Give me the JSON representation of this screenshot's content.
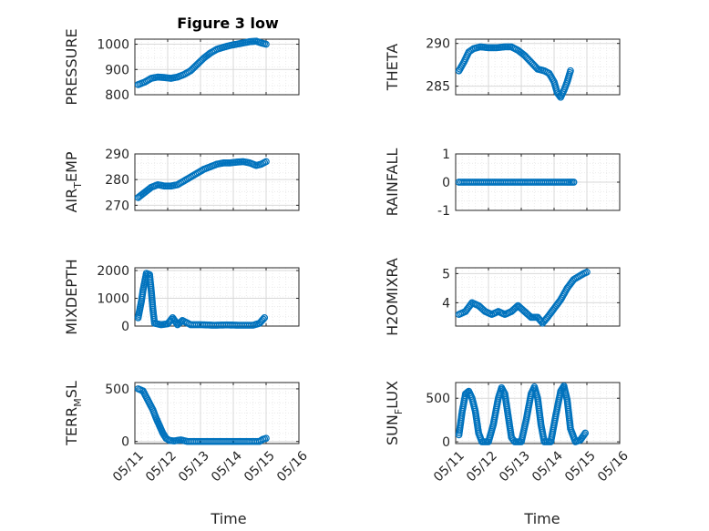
{
  "figure": {
    "background": "#ffffff",
    "marker_color": "#0072BD",
    "grid_color": "#d9d9d9",
    "x_tick_labels": [
      "05/11",
      "05/12",
      "05/13",
      "05/14",
      "05/15",
      "05/16"
    ],
    "x_label": "Time"
  },
  "chart_data": [
    {
      "type": "scatter",
      "title": "Figure 3 low",
      "ylabel": "PRESSURE",
      "ylabel_sub": "",
      "ylim": [
        800,
        1020
      ],
      "yticks": [
        800,
        900,
        1000
      ],
      "ytick_labels": [
        "800",
        "900",
        "1000"
      ],
      "xlim": [
        0,
        5
      ],
      "xtick_labels_shown": false,
      "grid": "on",
      "minor_grid": true,
      "points": [
        [
          0.1,
          840
        ],
        [
          0.3,
          850
        ],
        [
          0.5,
          865
        ],
        [
          0.7,
          870
        ],
        [
          0.9,
          868
        ],
        [
          1.1,
          865
        ],
        [
          1.3,
          870
        ],
        [
          1.5,
          880
        ],
        [
          1.7,
          895
        ],
        [
          1.9,
          920
        ],
        [
          2.1,
          945
        ],
        [
          2.3,
          965
        ],
        [
          2.5,
          980
        ],
        [
          2.7,
          988
        ],
        [
          2.9,
          995
        ],
        [
          3.1,
          1000
        ],
        [
          3.3,
          1005
        ],
        [
          3.5,
          1010
        ],
        [
          3.7,
          1012
        ],
        [
          3.85,
          1005
        ],
        [
          4.0,
          1000
        ]
      ]
    },
    {
      "type": "scatter",
      "title": "",
      "ylabel": "THETA",
      "ylabel_sub": "",
      "ylim": [
        284,
        290.5
      ],
      "yticks": [
        285,
        290
      ],
      "ytick_labels": [
        "285",
        "290"
      ],
      "xlim": [
        0,
        5
      ],
      "xtick_labels_shown": false,
      "grid": "on",
      "minor_grid": true,
      "points": [
        [
          0.1,
          286.8
        ],
        [
          0.25,
          287.8
        ],
        [
          0.4,
          289.0
        ],
        [
          0.55,
          289.4
        ],
        [
          0.75,
          289.6
        ],
        [
          1.0,
          289.5
        ],
        [
          1.25,
          289.5
        ],
        [
          1.5,
          289.6
        ],
        [
          1.7,
          289.6
        ],
        [
          1.9,
          289.2
        ],
        [
          2.1,
          288.6
        ],
        [
          2.3,
          287.8
        ],
        [
          2.5,
          287.0
        ],
        [
          2.7,
          286.8
        ],
        [
          2.85,
          286.5
        ],
        [
          3.0,
          285.5
        ],
        [
          3.1,
          284.2
        ],
        [
          3.2,
          283.7
        ],
        [
          3.3,
          284.5
        ],
        [
          3.4,
          285.5
        ],
        [
          3.5,
          286.8
        ]
      ]
    },
    {
      "type": "scatter",
      "title": "",
      "ylabel": "AIR",
      "ylabel_sub": "T",
      "ylabel_tail": "EMP",
      "ylim": [
        268,
        290
      ],
      "yticks": [
        270,
        280,
        290
      ],
      "ytick_labels": [
        "270",
        "280",
        "290"
      ],
      "xlim": [
        0,
        5
      ],
      "xtick_labels_shown": false,
      "grid": "on",
      "minor_grid": true,
      "points": [
        [
          0.1,
          273
        ],
        [
          0.3,
          275
        ],
        [
          0.5,
          277
        ],
        [
          0.7,
          278
        ],
        [
          0.9,
          277.5
        ],
        [
          1.1,
          277.5
        ],
        [
          1.3,
          278
        ],
        [
          1.5,
          279.5
        ],
        [
          1.7,
          281
        ],
        [
          1.9,
          282.5
        ],
        [
          2.1,
          284
        ],
        [
          2.3,
          285
        ],
        [
          2.5,
          286
        ],
        [
          2.7,
          286.5
        ],
        [
          2.9,
          286.5
        ],
        [
          3.1,
          286.8
        ],
        [
          3.3,
          287
        ],
        [
          3.5,
          286.5
        ],
        [
          3.7,
          285.5
        ],
        [
          3.85,
          286
        ],
        [
          4.0,
          287
        ]
      ]
    },
    {
      "type": "scatter",
      "title": "",
      "ylabel": "RAINFALL",
      "ylabel_sub": "",
      "ylim": [
        -1,
        1
      ],
      "yticks": [
        -1,
        0,
        1
      ],
      "ytick_labels": [
        "-1",
        "0",
        "1"
      ],
      "xlim": [
        0,
        5
      ],
      "xtick_labels_shown": false,
      "grid": "on",
      "minor_grid": true,
      "points": [
        [
          0.1,
          0
        ],
        [
          0.4,
          0
        ],
        [
          0.7,
          0
        ],
        [
          1.0,
          0
        ],
        [
          1.3,
          0
        ],
        [
          1.6,
          0
        ],
        [
          1.9,
          0
        ],
        [
          2.2,
          0
        ],
        [
          2.5,
          0
        ],
        [
          2.8,
          0
        ],
        [
          3.1,
          0
        ],
        [
          3.4,
          0
        ],
        [
          3.6,
          0
        ]
      ]
    },
    {
      "type": "scatter",
      "title": "",
      "ylabel": "MIXDEPTH",
      "ylabel_sub": "",
      "ylim": [
        0,
        2100
      ],
      "yticks": [
        0,
        1000,
        2000
      ],
      "ytick_labels": [
        "0",
        "1000",
        "2000"
      ],
      "xlim": [
        0,
        5
      ],
      "xtick_labels_shown": false,
      "grid": "on",
      "minor_grid": true,
      "points": [
        [
          0.1,
          300
        ],
        [
          0.15,
          600
        ],
        [
          0.2,
          900
        ],
        [
          0.25,
          1300
        ],
        [
          0.3,
          1600
        ],
        [
          0.35,
          1900
        ],
        [
          0.45,
          1850
        ],
        [
          0.5,
          1250
        ],
        [
          0.55,
          600
        ],
        [
          0.6,
          100
        ],
        [
          0.8,
          50
        ],
        [
          1.0,
          80
        ],
        [
          1.15,
          300
        ],
        [
          1.3,
          50
        ],
        [
          1.45,
          200
        ],
        [
          1.7,
          50
        ],
        [
          2.0,
          50
        ],
        [
          2.4,
          30
        ],
        [
          2.8,
          40
        ],
        [
          3.2,
          30
        ],
        [
          3.6,
          30
        ],
        [
          3.8,
          100
        ],
        [
          3.95,
          300
        ]
      ]
    },
    {
      "type": "scatter",
      "title": "",
      "ylabel": "H2OMIXRA",
      "ylabel_sub": "",
      "ylim": [
        3.2,
        5.2
      ],
      "yticks": [
        4,
        5
      ],
      "ytick_labels": [
        "4",
        "5"
      ],
      "xlim": [
        0,
        5
      ],
      "xtick_labels_shown": false,
      "grid": "on",
      "minor_grid": true,
      "points": [
        [
          0.1,
          3.6
        ],
        [
          0.3,
          3.7
        ],
        [
          0.5,
          4.0
        ],
        [
          0.7,
          3.9
        ],
        [
          0.9,
          3.7
        ],
        [
          1.1,
          3.6
        ],
        [
          1.3,
          3.7
        ],
        [
          1.5,
          3.6
        ],
        [
          1.7,
          3.7
        ],
        [
          1.9,
          3.9
        ],
        [
          2.1,
          3.7
        ],
        [
          2.3,
          3.5
        ],
        [
          2.5,
          3.5
        ],
        [
          2.65,
          3.3
        ],
        [
          2.8,
          3.5
        ],
        [
          3.0,
          3.8
        ],
        [
          3.2,
          4.1
        ],
        [
          3.4,
          4.5
        ],
        [
          3.6,
          4.8
        ],
        [
          3.75,
          4.9
        ],
        [
          3.9,
          5.0
        ],
        [
          4.0,
          5.05
        ]
      ]
    },
    {
      "type": "scatter",
      "title": "",
      "ylabel": "TERR",
      "ylabel_sub": "M",
      "ylabel_tail": "SL",
      "ylim": [
        -20,
        560
      ],
      "yticks": [
        0,
        500
      ],
      "ytick_labels": [
        "0",
        "500"
      ],
      "xlim": [
        0,
        5
      ],
      "xtick_labels_shown": true,
      "grid": "on",
      "minor_grid": true,
      "points": [
        [
          0.1,
          500
        ],
        [
          0.25,
          480
        ],
        [
          0.35,
          420
        ],
        [
          0.45,
          360
        ],
        [
          0.55,
          300
        ],
        [
          0.65,
          220
        ],
        [
          0.75,
          150
        ],
        [
          0.85,
          80
        ],
        [
          0.95,
          30
        ],
        [
          1.05,
          10
        ],
        [
          1.2,
          5
        ],
        [
          1.4,
          15
        ],
        [
          1.6,
          0
        ],
        [
          2.0,
          0
        ],
        [
          2.5,
          0
        ],
        [
          3.0,
          0
        ],
        [
          3.5,
          0
        ],
        [
          3.8,
          0
        ],
        [
          3.9,
          20
        ],
        [
          4.0,
          30
        ]
      ]
    },
    {
      "type": "scatter",
      "title": "",
      "ylabel": "SUN",
      "ylabel_sub": "F",
      "ylabel_tail": "LUX",
      "ylim": [
        -20,
        680
      ],
      "yticks": [
        0,
        500
      ],
      "ytick_labels": [
        "0",
        "500"
      ],
      "xlim": [
        0,
        5
      ],
      "xtick_labels_shown": true,
      "grid": "on",
      "minor_grid": true,
      "points": [
        [
          0.1,
          80
        ],
        [
          0.2,
          350
        ],
        [
          0.3,
          550
        ],
        [
          0.4,
          580
        ],
        [
          0.5,
          500
        ],
        [
          0.6,
          350
        ],
        [
          0.7,
          100
        ],
        [
          0.8,
          0
        ],
        [
          1.0,
          0
        ],
        [
          1.15,
          200
        ],
        [
          1.3,
          500
        ],
        [
          1.4,
          620
        ],
        [
          1.5,
          550
        ],
        [
          1.6,
          300
        ],
        [
          1.7,
          50
        ],
        [
          1.8,
          0
        ],
        [
          2.0,
          0
        ],
        [
          2.15,
          250
        ],
        [
          2.3,
          550
        ],
        [
          2.4,
          630
        ],
        [
          2.5,
          500
        ],
        [
          2.6,
          200
        ],
        [
          2.7,
          0
        ],
        [
          2.9,
          0
        ],
        [
          3.05,
          300
        ],
        [
          3.2,
          580
        ],
        [
          3.3,
          640
        ],
        [
          3.4,
          480
        ],
        [
          3.5,
          150
        ],
        [
          3.65,
          0
        ],
        [
          3.8,
          20
        ],
        [
          3.95,
          100
        ]
      ]
    }
  ]
}
